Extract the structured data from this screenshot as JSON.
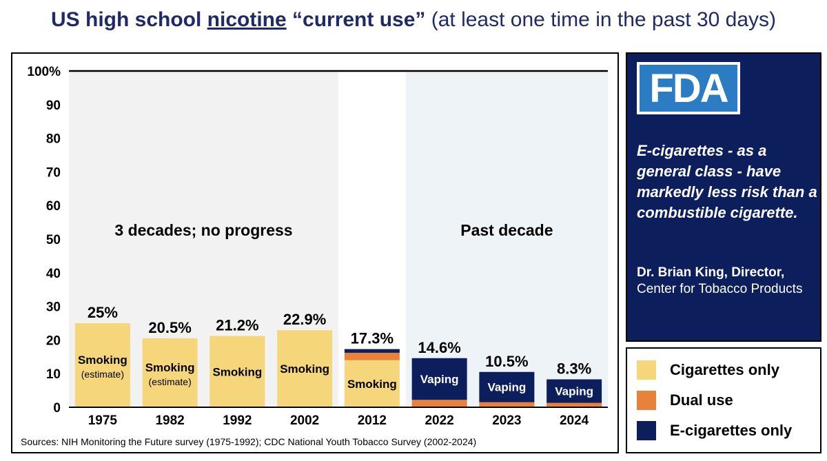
{
  "title": {
    "part1": "US high school ",
    "underlined": "nicotine",
    "part2": " “current use”",
    "subtitle": " (at least one time in the past 30 days)"
  },
  "chart_data": {
    "type": "bar",
    "stacked": true,
    "categories": [
      "1975",
      "1982",
      "1992",
      "2002",
      "2012",
      "2022",
      "2023",
      "2024"
    ],
    "ylim": [
      0,
      100
    ],
    "yticks": [
      0,
      10,
      20,
      30,
      40,
      50,
      60,
      70,
      80,
      90,
      100
    ],
    "yticklabels": [
      "0",
      "10",
      "20",
      "30",
      "40",
      "50",
      "60",
      "70",
      "80",
      "90",
      "100%"
    ],
    "grid": false,
    "totals_labels": [
      "25%",
      "20.5%",
      "21.2%",
      "22.9%",
      "17.3%",
      "14.6%",
      "10.5%",
      "8.3%"
    ],
    "series": [
      {
        "name": "Cigarettes only",
        "color": "#f6d67a",
        "values": [
          25,
          20.5,
          21.2,
          22.9,
          14.0,
          0,
          0,
          0
        ]
      },
      {
        "name": "Dual use",
        "color": "#e8823a",
        "values": [
          0,
          0,
          0,
          0,
          2.2,
          2.2,
          1.5,
          1.3
        ]
      },
      {
        "name": "E-cigarettes only",
        "color": "#0c1f5c",
        "values": [
          0,
          0,
          0,
          0,
          1.1,
          12.4,
          9.0,
          7.0
        ]
      }
    ],
    "bar_labels": [
      {
        "text": "Smoking",
        "note": "(estimate)",
        "dark": false
      },
      {
        "text": "Smoking",
        "note": "(estimate)",
        "dark": false
      },
      {
        "text": "Smoking",
        "note": "",
        "dark": false
      },
      {
        "text": "Smoking",
        "note": "",
        "dark": false
      },
      {
        "text": "Smoking",
        "note": "",
        "dark": false
      },
      {
        "text": "Vaping",
        "note": "",
        "dark": true
      },
      {
        "text": "Vaping",
        "note": "",
        "dark": true
      },
      {
        "text": "Vaping",
        "note": "",
        "dark": true
      }
    ],
    "annotations": [
      "3 decades; no progress",
      "Past decade"
    ],
    "source": "Sources:  NIH Monitoring the Future survey (1975-1992); CDC National Youth Tobacco Survey (2002-2024)"
  },
  "fda": {
    "logo_text": "FDA",
    "quote": "E-cigarettes - as a general class - have markedly less risk than a combustible cigarette.",
    "attribution_name": "Dr. Brian King, Director,",
    "attribution_org": "Center for Tobacco Products"
  },
  "legend": {
    "items": [
      {
        "label": "Cigarettes only",
        "color": "#f6d67a"
      },
      {
        "label": "Dual use",
        "color": "#e8823a"
      },
      {
        "label": "E-cigarettes only",
        "color": "#0c1f5c"
      }
    ]
  }
}
